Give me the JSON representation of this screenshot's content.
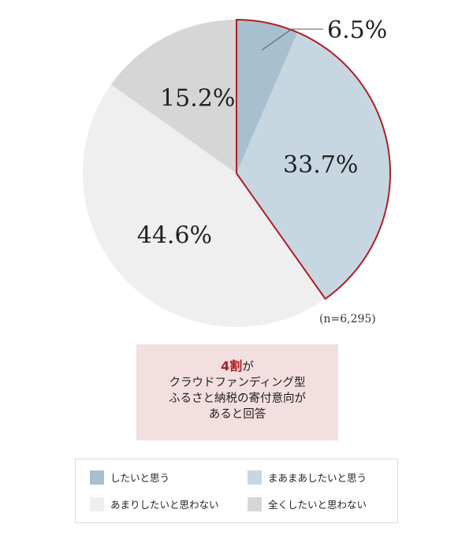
{
  "chart_data": {
    "type": "pie",
    "slices": [
      {
        "label": "したいと思う",
        "value": 6.5,
        "display": "6.5%",
        "color": "#a8bfcf"
      },
      {
        "label": "まあまあしたいと思う",
        "value": 33.7,
        "display": "33.7%",
        "color": "#c7d7e2"
      },
      {
        "label": "あまりしたいと思わない",
        "value": 44.6,
        "display": "44.6%",
        "color": "#efefef"
      },
      {
        "label": "全くしたいと思わない",
        "value": 15.2,
        "display": "15.2%",
        "color": "#d6d6d6"
      }
    ],
    "highlight": {
      "slices": [
        0,
        1
      ],
      "outline_color": "#b01e23"
    },
    "sample_size": "(n=6,295)"
  },
  "callout": {
    "accent": "4割",
    "accent_suffix": "が",
    "line2": "クラウドファンディング型",
    "line3": "ふるさと納税の寄付意向が",
    "line4": "あると回答"
  }
}
